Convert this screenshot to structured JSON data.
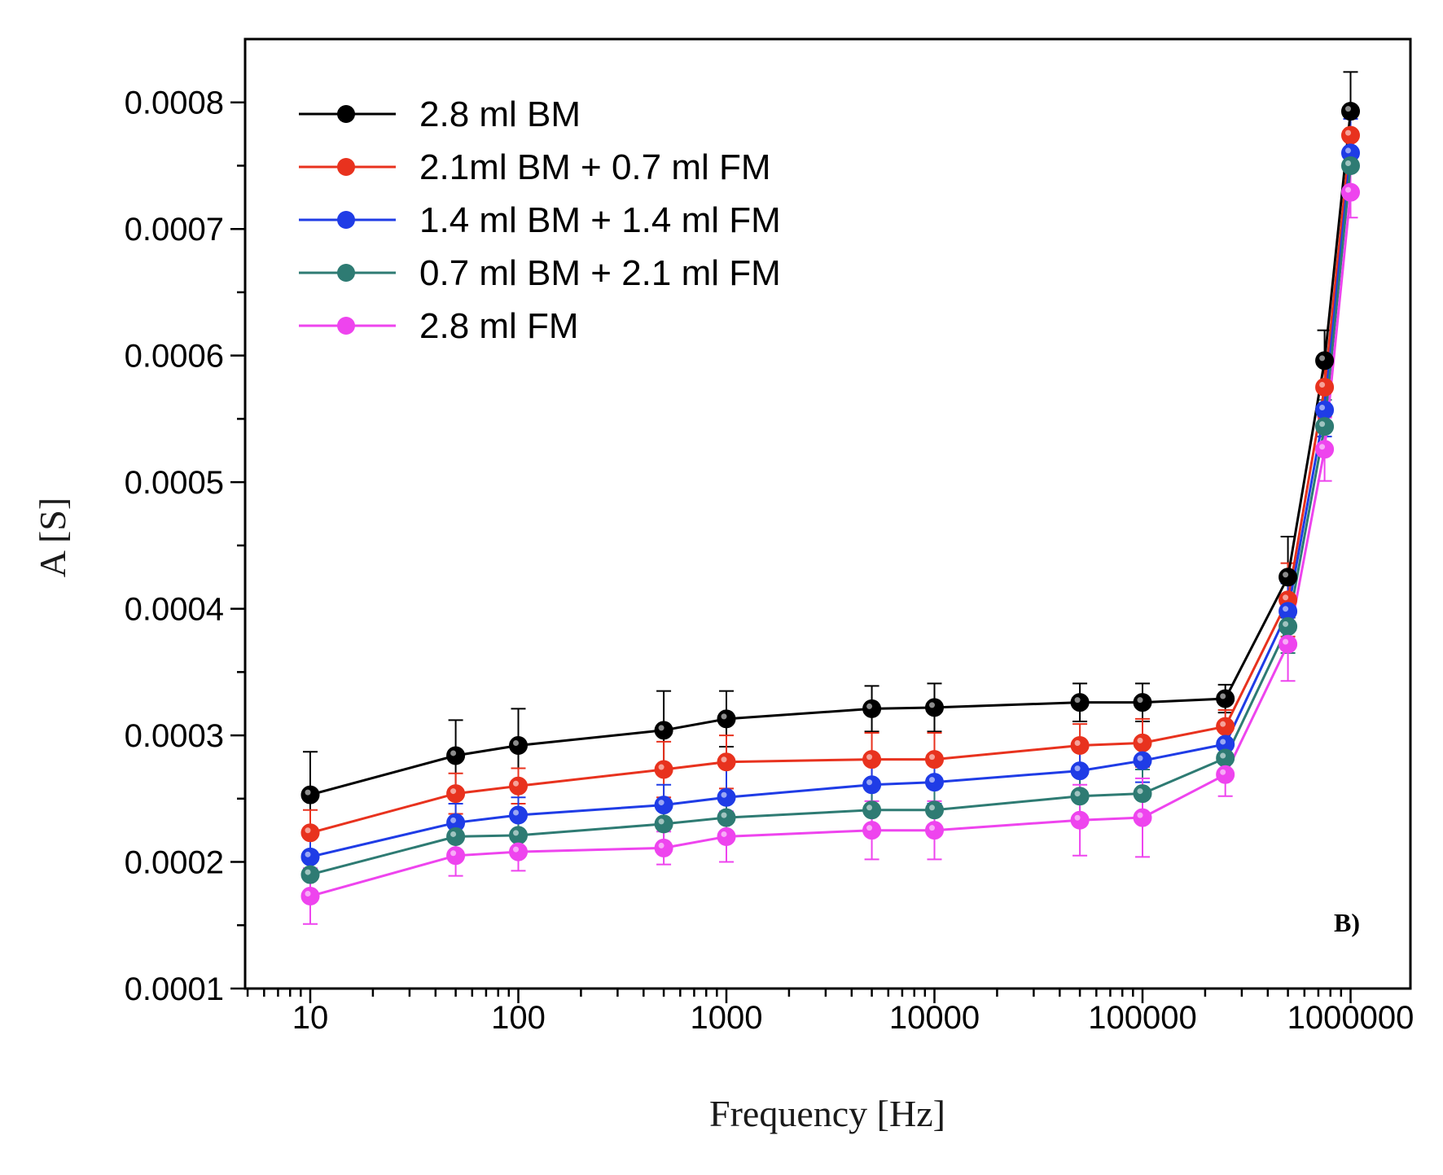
{
  "chart_data": {
    "type": "line",
    "xscale": "log",
    "xlabel": "Frequency [Hz]",
    "ylabel": "A [S]",
    "xlim": [
      5,
      3000000
    ],
    "ylim": [
      0.0001,
      0.00085
    ],
    "xtick_values": [
      10,
      100,
      1000,
      10000,
      100000,
      1000000
    ],
    "xtick_labels": [
      "10",
      "100",
      "1000",
      "10000",
      "100000",
      "1000000"
    ],
    "ytick_values": [
      0.0001,
      0.0002,
      0.0003,
      0.0004,
      0.0005,
      0.0006,
      0.0007,
      0.0008
    ],
    "ytick_labels": [
      "0.0001",
      "0.0002",
      "0.0003",
      "0.0004",
      "0.0005",
      "0.0006",
      "0.0007",
      "0.0008"
    ],
    "panel_label": "B)",
    "legend_position": "top-left",
    "x": [
      10,
      50,
      100,
      500,
      1000,
      5000,
      10000,
      50000,
      100000,
      250000,
      500000,
      750000,
      1000000
    ],
    "series": [
      {
        "name": "2.8 ml BM",
        "color": "#000000",
        "values": [
          0.000253,
          0.000284,
          0.000292,
          0.000304,
          0.000313,
          0.000321,
          0.000322,
          0.000326,
          0.000326,
          0.000329,
          0.000425,
          0.000596,
          0.000793
        ],
        "errors": [
          3.4e-05,
          2.8e-05,
          2.9e-05,
          3.1e-05,
          2.2e-05,
          1.8e-05,
          1.9e-05,
          1.5e-05,
          1.5e-05,
          1.1e-05,
          3.2e-05,
          2.4e-05,
          3.1e-05
        ]
      },
      {
        "name": "2.1ml  BM + 0.7 ml FM",
        "color": "#e8321e",
        "values": [
          0.000223,
          0.000254,
          0.00026,
          0.000273,
          0.000279,
          0.000281,
          0.000281,
          0.000292,
          0.000294,
          0.000307,
          0.000407,
          0.000575,
          0.000774
        ],
        "errors": [
          1.8e-05,
          1.6e-05,
          1.4e-05,
          2.2e-05,
          2.1e-05,
          2.1e-05,
          2.1e-05,
          1.7e-05,
          1.9e-05,
          1.3e-05,
          2.9e-05,
          2.3e-05,
          2.2e-05
        ]
      },
      {
        "name": "1.4 ml BM + 1.4 ml FM",
        "color": "#1f3ce6",
        "values": [
          0.000204,
          0.000231,
          0.000237,
          0.000245,
          0.000251,
          0.000261,
          0.000263,
          0.000272,
          0.00028,
          0.000293,
          0.000398,
          0.000557,
          0.00076
        ],
        "errors": [
          1.5e-05,
          1.5e-05,
          1.4e-05,
          1.6e-05,
          2.8e-05,
          1.7e-05,
          1.7e-05,
          1.9e-05,
          1.7e-05,
          1.5e-05,
          2.2e-05,
          2.1e-05,
          2.7e-05
        ]
      },
      {
        "name": "0.7 ml BM + 2.1 ml FM",
        "color": "#2e7b73",
        "values": [
          0.00019,
          0.00022,
          0.000221,
          0.00023,
          0.000235,
          0.000241,
          0.000241,
          0.000252,
          0.000254,
          0.000282,
          0.000386,
          0.000544,
          0.00075
        ],
        "errors": [
          1.6e-05,
          1.4e-05,
          1.4e-05,
          1.5e-05,
          1.7e-05,
          1.8e-05,
          1.8e-05,
          2.1e-05,
          1.9e-05,
          1.4e-05,
          2.1e-05,
          2.1e-05,
          2.2e-05
        ]
      },
      {
        "name": "2.8 ml FM",
        "color": "#ee44ee",
        "values": [
          0.000173,
          0.000205,
          0.000208,
          0.000211,
          0.00022,
          0.000225,
          0.000225,
          0.000233,
          0.000235,
          0.000269,
          0.000372,
          0.000526,
          0.000729
        ],
        "errors": [
          2.2e-05,
          1.6e-05,
          1.5e-05,
          1.3e-05,
          2e-05,
          2.3e-05,
          2.3e-05,
          2.8e-05,
          3.1e-05,
          1.7e-05,
          2.9e-05,
          2.5e-05,
          2e-05
        ]
      }
    ]
  }
}
